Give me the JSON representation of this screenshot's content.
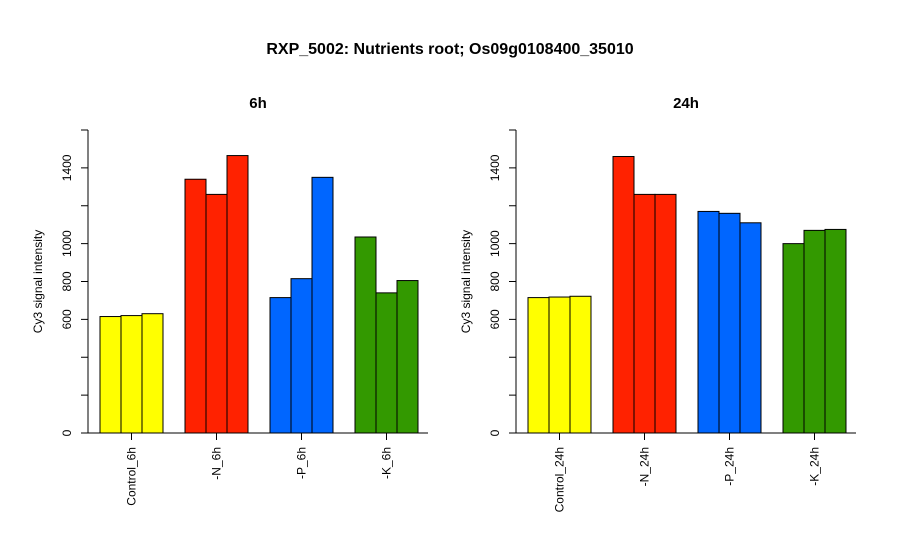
{
  "title": "RXP_5002: Nutrients root; Os09g0108400_35010",
  "colors": {
    "control": "#ffff00",
    "N": "#ff2200",
    "P": "#0066ff",
    "K": "#339900"
  },
  "chart_data": [
    {
      "type": "bar",
      "title": "6h",
      "ylabel": "Cy3 signal intensity",
      "ylim": [
        0,
        1600
      ],
      "yticks": [
        0,
        600,
        800,
        1000,
        1400
      ],
      "groups": [
        {
          "label": "Control_6h",
          "color_key": "control",
          "values": [
            615,
            620,
            630
          ]
        },
        {
          "label": "-N_6h",
          "color_key": "N",
          "values": [
            1340,
            1260,
            1465
          ]
        },
        {
          "label": "-P_6h",
          "color_key": "P",
          "values": [
            715,
            815,
            1350
          ]
        },
        {
          "label": "-K_6h",
          "color_key": "K",
          "values": [
            1035,
            740,
            805
          ]
        }
      ]
    },
    {
      "type": "bar",
      "title": "24h",
      "ylabel": "Cy3 signal intensity",
      "ylim": [
        0,
        1600
      ],
      "yticks": [
        0,
        600,
        800,
        1000,
        1400
      ],
      "groups": [
        {
          "label": "Control_24h",
          "color_key": "control",
          "values": [
            715,
            718,
            722
          ]
        },
        {
          "label": "-N_24h",
          "color_key": "N",
          "values": [
            1460,
            1260,
            1260
          ]
        },
        {
          "label": "-P_24h",
          "color_key": "P",
          "values": [
            1170,
            1160,
            1110
          ]
        },
        {
          "label": "-K_24h",
          "color_key": "K",
          "values": [
            1000,
            1070,
            1075
          ]
        }
      ]
    }
  ]
}
